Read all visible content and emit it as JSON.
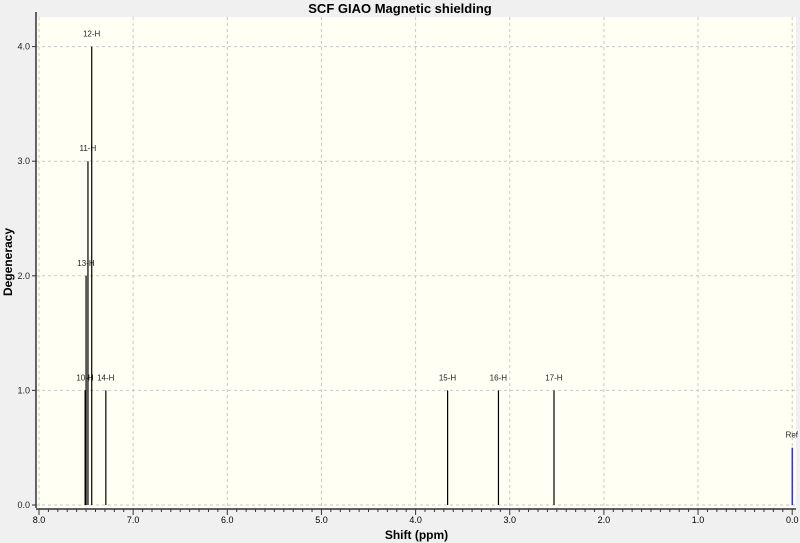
{
  "chart_data": {
    "type": "bar",
    "title": "SCF GIAO Magnetic shielding",
    "xlabel": "Shift (ppm)",
    "ylabel": "Degeneracy",
    "xlim": [
      8.0,
      0.0
    ],
    "ylim": [
      0.0,
      4.2
    ],
    "x_reversed": true,
    "grid": true,
    "xticks": [
      "8.0",
      "7.0",
      "6.0",
      "5.0",
      "4.0",
      "3.0",
      "2.0",
      "1.0",
      "0.0"
    ],
    "yticks": [
      "0.0",
      "1.0",
      "2.0",
      "3.0",
      "4.0"
    ],
    "peaks": [
      {
        "label": "10-H",
        "x": 7.51,
        "y": 1.0
      },
      {
        "label": "13-H",
        "x": 7.5,
        "y": 2.0
      },
      {
        "label": "11-H",
        "x": 7.48,
        "y": 3.0
      },
      {
        "label": "12-H",
        "x": 7.44,
        "y": 4.0
      },
      {
        "label": "14-H",
        "x": 7.29,
        "y": 1.0
      },
      {
        "label": "15-H",
        "x": 3.66,
        "y": 1.0
      },
      {
        "label": "16-H",
        "x": 3.12,
        "y": 1.0
      },
      {
        "label": "17-H",
        "x": 2.53,
        "y": 1.0
      },
      {
        "label": "Ref",
        "x": 0.0,
        "y": 0.5,
        "color": "#0000ff"
      }
    ],
    "colors": {
      "peak": "#000000",
      "reference": "#0000ff",
      "plot_background": "#fffff4"
    }
  }
}
